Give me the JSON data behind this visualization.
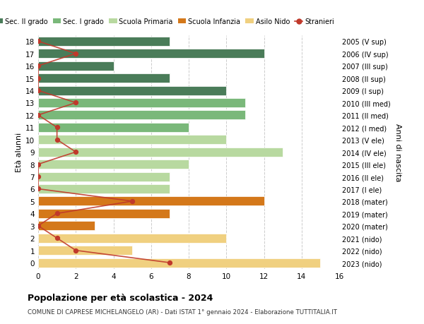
{
  "ages": [
    18,
    17,
    16,
    15,
    14,
    13,
    12,
    11,
    10,
    9,
    8,
    7,
    6,
    5,
    4,
    3,
    2,
    1,
    0
  ],
  "years": [
    "2005 (V sup)",
    "2006 (IV sup)",
    "2007 (III sup)",
    "2008 (II sup)",
    "2009 (I sup)",
    "2010 (III med)",
    "2011 (II med)",
    "2012 (I med)",
    "2013 (V ele)",
    "2014 (IV ele)",
    "2015 (III ele)",
    "2016 (II ele)",
    "2017 (I ele)",
    "2018 (mater)",
    "2019 (mater)",
    "2020 (mater)",
    "2021 (nido)",
    "2022 (nido)",
    "2023 (nido)"
  ],
  "bar_values": [
    7,
    12,
    4,
    7,
    10,
    11,
    11,
    8,
    10,
    13,
    8,
    7,
    7,
    12,
    7,
    3,
    10,
    5,
    15
  ],
  "bar_colors": [
    "#4a7c59",
    "#4a7c59",
    "#4a7c59",
    "#4a7c59",
    "#4a7c59",
    "#7ab87a",
    "#7ab87a",
    "#7ab87a",
    "#b8d9a0",
    "#b8d9a0",
    "#b8d9a0",
    "#b8d9a0",
    "#b8d9a0",
    "#d4781a",
    "#d4781a",
    "#d4781a",
    "#f0d080",
    "#f0d080",
    "#f0d080"
  ],
  "stranieri_values": [
    0,
    2,
    0,
    0,
    0,
    2,
    0,
    1,
    1,
    2,
    0,
    0,
    0,
    5,
    1,
    0,
    1,
    2,
    7
  ],
  "xlim": [
    0,
    16
  ],
  "ylim": [
    -0.5,
    18.5
  ],
  "xlabel_ticks": [
    0,
    2,
    4,
    6,
    8,
    10,
    12,
    14,
    16
  ],
  "title_main": "Popolazione per età scolastica - 2024",
  "title_sub": "COMUNE DI CAPRESE MICHELANGELO (AR) - Dati ISTAT 1° gennaio 2024 - Elaborazione TUTTITALIA.IT",
  "ylabel_left": "Età alunni",
  "ylabel_right": "Anni di nascita",
  "legend_labels": [
    "Sec. II grado",
    "Sec. I grado",
    "Scuola Primaria",
    "Scuola Infanzia",
    "Asilo Nido",
    "Stranieri"
  ],
  "legend_colors": [
    "#4a7c59",
    "#7ab87a",
    "#b8d9a0",
    "#d4781a",
    "#f0d080",
    "#c0392b"
  ],
  "color_stranieri": "#c0392b",
  "bar_height": 0.75,
  "bg_color": "#ffffff",
  "grid_color": "#cccccc"
}
